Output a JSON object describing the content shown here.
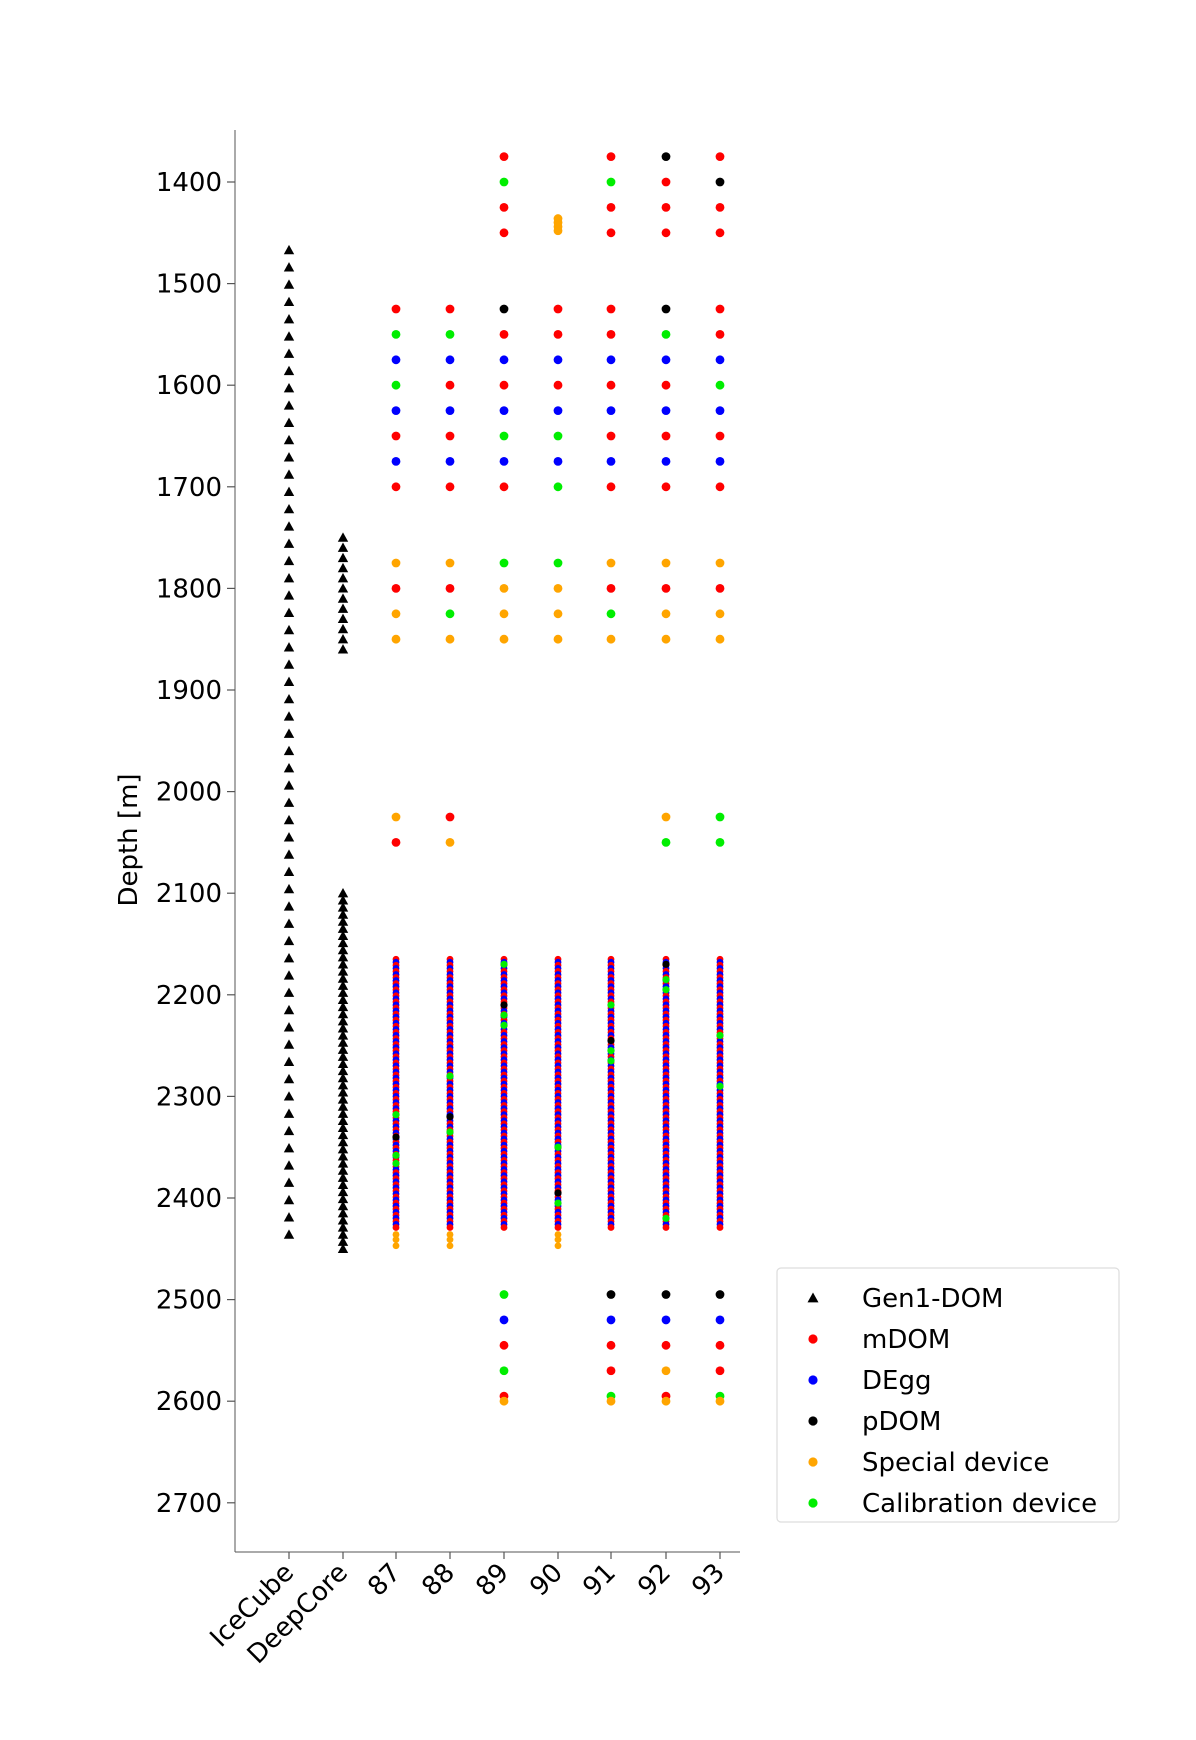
{
  "chart_data": {
    "type": "scatter",
    "ylabel": "Depth [m]",
    "xlabel": "",
    "ylim": [
      2750,
      1350
    ],
    "y_inverted": true,
    "yticks": [
      1400,
      1500,
      1600,
      1700,
      1800,
      1900,
      2000,
      2100,
      2200,
      2300,
      2400,
      2500,
      2600,
      2700
    ],
    "categories": [
      "IceCube",
      "DeepCore",
      "87",
      "88",
      "89",
      "90",
      "91",
      "92",
      "93"
    ],
    "legend_position": "lower-right-outside",
    "grid": false,
    "series": [
      {
        "name": "Gen1-DOM",
        "marker": "triangle",
        "color": "#000000"
      },
      {
        "name": "mDOM",
        "marker": "circle",
        "color": "#ff0000"
      },
      {
        "name": "DEgg",
        "marker": "circle",
        "color": "#0000ff"
      },
      {
        "name": "pDOM",
        "marker": "circle",
        "color": "#000000"
      },
      {
        "name": "Special device",
        "marker": "circle",
        "color": "#ffa500"
      },
      {
        "name": "Calibration device",
        "marker": "circle",
        "color": "#00ee00"
      }
    ],
    "gen1_strings": [
      {
        "category": "IceCube",
        "depth_start": 1467,
        "depth_end": 2450,
        "spacing": 17
      },
      {
        "category": "DeepCore",
        "depth_start": 1750,
        "depth_end": 1860,
        "spacing": 10
      },
      {
        "category": "DeepCore",
        "depth_start": 2100,
        "depth_end": 2450,
        "spacing": 7
      }
    ],
    "dense_region": {
      "depth_start": 2165,
      "depth_end": 2430,
      "spacing": 3,
      "special_tail": [
        2436,
        2441,
        2447
      ]
    },
    "strings": [
      {
        "category": "87",
        "points": [
          [
            1525,
            "mDOM"
          ],
          [
            1550,
            "Calibration device"
          ],
          [
            1575,
            "DEgg"
          ],
          [
            1600,
            "Calibration device"
          ],
          [
            1625,
            "DEgg"
          ],
          [
            1650,
            "mDOM"
          ],
          [
            1675,
            "DEgg"
          ],
          [
            1700,
            "mDOM"
          ],
          [
            1775,
            "Special device"
          ],
          [
            1800,
            "mDOM"
          ],
          [
            1825,
            "Special device"
          ],
          [
            1850,
            "Special device"
          ],
          [
            2025,
            "Special device"
          ],
          [
            2050,
            "mDOM"
          ]
        ],
        "dense_special": [
          [
            2318,
            "Calibration device"
          ],
          [
            2340,
            "pDOM"
          ],
          [
            2358,
            "Calibration device"
          ],
          [
            2366,
            "Calibration device"
          ]
        ],
        "tail": true
      },
      {
        "category": "88",
        "points": [
          [
            1525,
            "mDOM"
          ],
          [
            1550,
            "Calibration device"
          ],
          [
            1575,
            "DEgg"
          ],
          [
            1600,
            "mDOM"
          ],
          [
            1625,
            "DEgg"
          ],
          [
            1650,
            "mDOM"
          ],
          [
            1675,
            "DEgg"
          ],
          [
            1700,
            "mDOM"
          ],
          [
            1775,
            "Special device"
          ],
          [
            1800,
            "mDOM"
          ],
          [
            1825,
            "Calibration device"
          ],
          [
            1850,
            "Special device"
          ],
          [
            2025,
            "mDOM"
          ],
          [
            2050,
            "Special device"
          ]
        ],
        "dense_special": [
          [
            2280,
            "Calibration device"
          ],
          [
            2320,
            "pDOM"
          ],
          [
            2335,
            "Calibration device"
          ]
        ],
        "tail": true
      },
      {
        "category": "89",
        "points": [
          [
            1375,
            "mDOM"
          ],
          [
            1400,
            "Calibration device"
          ],
          [
            1425,
            "mDOM"
          ],
          [
            1450,
            "mDOM"
          ],
          [
            1525,
            "pDOM"
          ],
          [
            1550,
            "mDOM"
          ],
          [
            1575,
            "DEgg"
          ],
          [
            1600,
            "mDOM"
          ],
          [
            1625,
            "DEgg"
          ],
          [
            1650,
            "Calibration device"
          ],
          [
            1675,
            "DEgg"
          ],
          [
            1700,
            "mDOM"
          ],
          [
            1775,
            "Calibration device"
          ],
          [
            1800,
            "Special device"
          ],
          [
            1825,
            "Special device"
          ],
          [
            1850,
            "Special device"
          ],
          [
            2495,
            "Calibration device"
          ],
          [
            2520,
            "DEgg"
          ],
          [
            2545,
            "mDOM"
          ],
          [
            2570,
            "Calibration device"
          ],
          [
            2595,
            "mDOM"
          ],
          [
            2600,
            "Special device"
          ]
        ],
        "dense_special": [
          [
            2170,
            "Calibration device"
          ],
          [
            2210,
            "pDOM"
          ],
          [
            2220,
            "Calibration device"
          ],
          [
            2230,
            "Calibration device"
          ]
        ],
        "tail": false
      },
      {
        "category": "90",
        "points": [
          [
            1436,
            "Special device"
          ],
          [
            1440,
            "Special device"
          ],
          [
            1444,
            "Special device"
          ],
          [
            1448,
            "Special device"
          ],
          [
            1525,
            "mDOM"
          ],
          [
            1550,
            "mDOM"
          ],
          [
            1575,
            "DEgg"
          ],
          [
            1600,
            "mDOM"
          ],
          [
            1625,
            "DEgg"
          ],
          [
            1650,
            "Calibration device"
          ],
          [
            1675,
            "DEgg"
          ],
          [
            1700,
            "Calibration device"
          ],
          [
            1775,
            "Calibration device"
          ],
          [
            1800,
            "Special device"
          ],
          [
            1825,
            "Special device"
          ],
          [
            1850,
            "Special device"
          ]
        ],
        "dense_special": [
          [
            2350,
            "Calibration device"
          ],
          [
            2395,
            "pDOM"
          ],
          [
            2405,
            "Calibration device"
          ]
        ],
        "tail": true
      },
      {
        "category": "91",
        "points": [
          [
            1375,
            "mDOM"
          ],
          [
            1400,
            "Calibration device"
          ],
          [
            1425,
            "mDOM"
          ],
          [
            1450,
            "mDOM"
          ],
          [
            1525,
            "mDOM"
          ],
          [
            1550,
            "mDOM"
          ],
          [
            1575,
            "DEgg"
          ],
          [
            1600,
            "mDOM"
          ],
          [
            1625,
            "DEgg"
          ],
          [
            1650,
            "mDOM"
          ],
          [
            1675,
            "DEgg"
          ],
          [
            1700,
            "mDOM"
          ],
          [
            1775,
            "Special device"
          ],
          [
            1800,
            "mDOM"
          ],
          [
            1825,
            "Calibration device"
          ],
          [
            1850,
            "Special device"
          ],
          [
            2495,
            "pDOM"
          ],
          [
            2520,
            "DEgg"
          ],
          [
            2545,
            "mDOM"
          ],
          [
            2570,
            "mDOM"
          ],
          [
            2595,
            "Calibration device"
          ],
          [
            2600,
            "Special device"
          ]
        ],
        "dense_special": [
          [
            2210,
            "Calibration device"
          ],
          [
            2245,
            "pDOM"
          ],
          [
            2255,
            "Calibration device"
          ],
          [
            2265,
            "Calibration device"
          ]
        ],
        "tail": false
      },
      {
        "category": "92",
        "points": [
          [
            1375,
            "pDOM"
          ],
          [
            1400,
            "mDOM"
          ],
          [
            1425,
            "mDOM"
          ],
          [
            1450,
            "mDOM"
          ],
          [
            1525,
            "pDOM"
          ],
          [
            1550,
            "Calibration device"
          ],
          [
            1575,
            "DEgg"
          ],
          [
            1600,
            "mDOM"
          ],
          [
            1625,
            "DEgg"
          ],
          [
            1650,
            "mDOM"
          ],
          [
            1675,
            "DEgg"
          ],
          [
            1700,
            "mDOM"
          ],
          [
            1775,
            "Special device"
          ],
          [
            1800,
            "mDOM"
          ],
          [
            1825,
            "Special device"
          ],
          [
            1850,
            "Special device"
          ],
          [
            2025,
            "Special device"
          ],
          [
            2050,
            "Calibration device"
          ],
          [
            2495,
            "pDOM"
          ],
          [
            2520,
            "DEgg"
          ],
          [
            2545,
            "mDOM"
          ],
          [
            2570,
            "Special device"
          ],
          [
            2595,
            "mDOM"
          ],
          [
            2600,
            "Special device"
          ]
        ],
        "dense_special": [
          [
            2170,
            "pDOM"
          ],
          [
            2185,
            "Calibration device"
          ],
          [
            2195,
            "Calibration device"
          ],
          [
            2420,
            "Calibration device"
          ]
        ],
        "tail": false
      },
      {
        "category": "93",
        "points": [
          [
            1375,
            "mDOM"
          ],
          [
            1400,
            "pDOM"
          ],
          [
            1425,
            "mDOM"
          ],
          [
            1450,
            "mDOM"
          ],
          [
            1525,
            "mDOM"
          ],
          [
            1550,
            "mDOM"
          ],
          [
            1575,
            "DEgg"
          ],
          [
            1600,
            "Calibration device"
          ],
          [
            1625,
            "DEgg"
          ],
          [
            1650,
            "mDOM"
          ],
          [
            1675,
            "DEgg"
          ],
          [
            1700,
            "mDOM"
          ],
          [
            1775,
            "Special device"
          ],
          [
            1800,
            "mDOM"
          ],
          [
            1825,
            "Special device"
          ],
          [
            1850,
            "Special device"
          ],
          [
            2025,
            "Calibration device"
          ],
          [
            2050,
            "Calibration device"
          ],
          [
            2495,
            "pDOM"
          ],
          [
            2520,
            "DEgg"
          ],
          [
            2545,
            "mDOM"
          ],
          [
            2570,
            "mDOM"
          ],
          [
            2595,
            "Calibration device"
          ],
          [
            2600,
            "Special device"
          ]
        ],
        "dense_special": [
          [
            2240,
            "Calibration device"
          ],
          [
            2290,
            "Calibration device"
          ]
        ],
        "tail": false
      }
    ]
  }
}
